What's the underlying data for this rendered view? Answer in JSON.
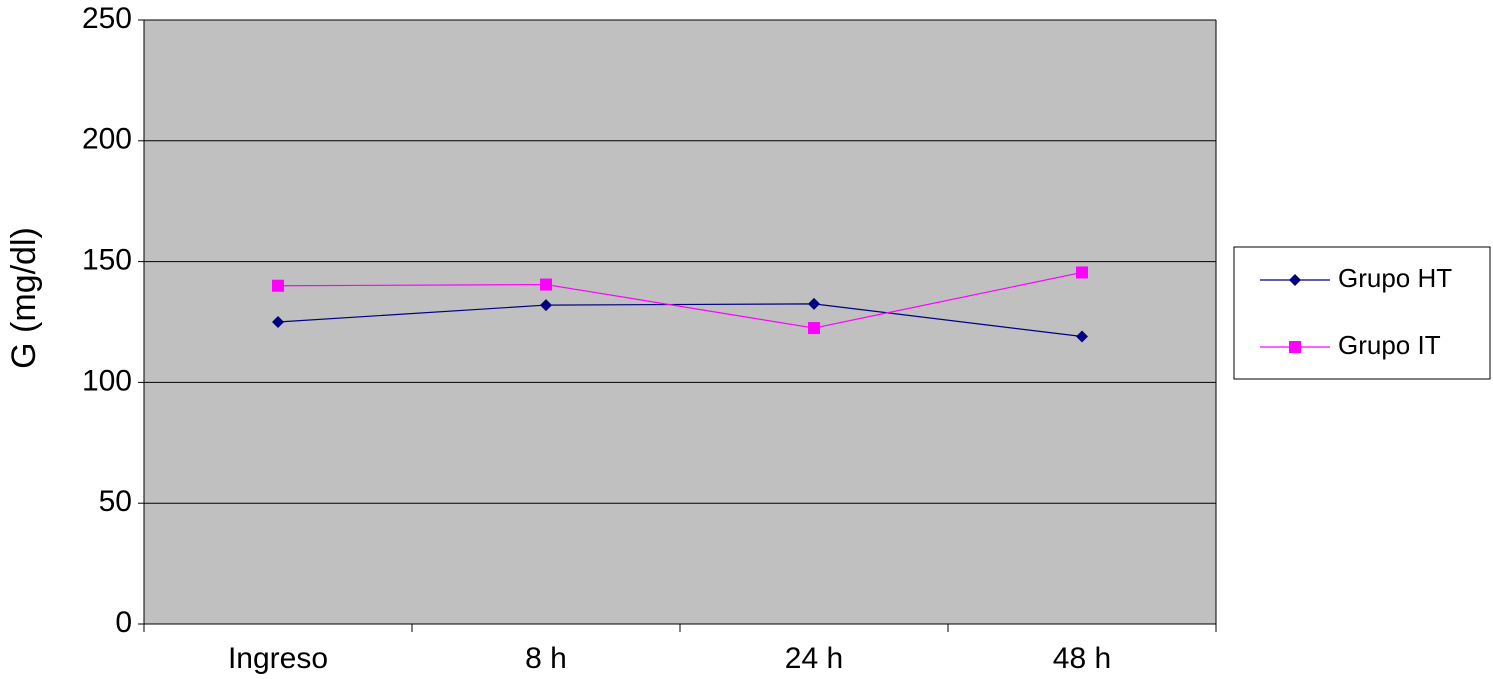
{
  "chart_data": {
    "type": "line",
    "y_label": "G (mg/dl)",
    "categories": [
      "Ingreso",
      "8 h",
      "24 h",
      "48 h"
    ],
    "series": [
      {
        "name": "Grupo HT",
        "color": "#000080",
        "marker": "diamond",
        "values": [
          125,
          132,
          132.5,
          119
        ]
      },
      {
        "name": "Grupo IT",
        "color": "#ff00ff",
        "marker": "square",
        "values": [
          140,
          140.5,
          122.5,
          145.5
        ]
      }
    ],
    "ylim": [
      0,
      250
    ],
    "yticks": [
      0,
      50,
      100,
      150,
      200,
      250
    ],
    "grid": true,
    "plot_background": "#c0c0c0",
    "legend": "right"
  }
}
